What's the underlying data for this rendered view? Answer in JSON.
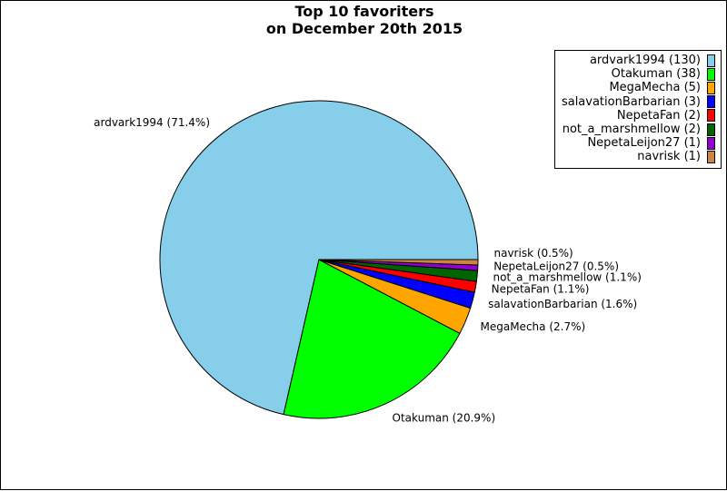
{
  "title_line1": "Top 10 favoriters",
  "title_line2": "on December 20th 2015",
  "chart_data": {
    "type": "pie",
    "title": "Top 10 favoriters on December 20th 2015",
    "legend_position": "top-right",
    "slices": [
      {
        "name": "ardvark1994",
        "value": 130,
        "label": "ardvark1994 (71.4%)",
        "legend": "ardvark1994 (130)",
        "color": "#87ceeb"
      },
      {
        "name": "Otakuman",
        "value": 38,
        "label": "Otakuman (20.9%)",
        "legend": "Otakuman (38)",
        "color": "#00ff00"
      },
      {
        "name": "MegaMecha",
        "value": 5,
        "label": "MegaMecha (2.7%)",
        "legend": "MegaMecha (5)",
        "color": "#ffa500"
      },
      {
        "name": "salavationBarbarian",
        "value": 3,
        "label": "salavationBarbarian (1.6%)",
        "legend": "salavationBarbarian (3)",
        "color": "#0000ff"
      },
      {
        "name": "NepetaFan",
        "value": 2,
        "label": "NepetaFan (1.1%)",
        "legend": "NepetaFan (2)",
        "color": "#ff0000"
      },
      {
        "name": "not_a_marshmellow",
        "value": 2,
        "label": "not_a_marshmellow (1.1%)",
        "legend": "not_a_marshmellow (2)",
        "color": "#006400"
      },
      {
        "name": "NepetaLeijon27",
        "value": 1,
        "label": "NepetaLeijon27 (0.5%)",
        "legend": "NepetaLeijon27 (1)",
        "color": "#9400d3"
      },
      {
        "name": "navrisk",
        "value": 1,
        "label": "navrisk (0.5%)",
        "legend": "navrisk (1)",
        "color": "#cd853f"
      }
    ]
  }
}
